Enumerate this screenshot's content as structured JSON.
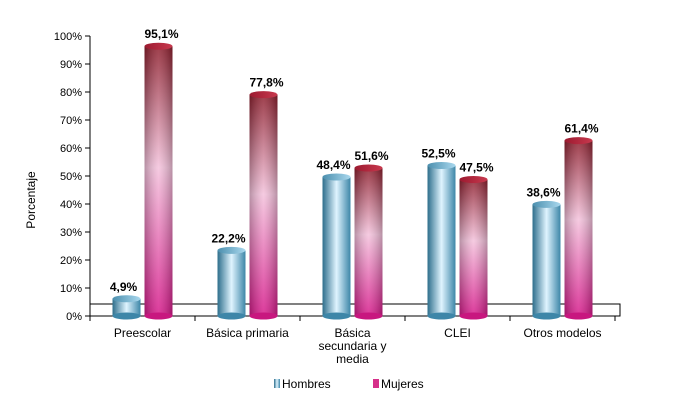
{
  "chart_data": {
    "type": "bar",
    "ylabel": "Porcentaje",
    "ylim": [
      0,
      100
    ],
    "yticks": [
      "0%",
      "10%",
      "20%",
      "30%",
      "40%",
      "50%",
      "60%",
      "70%",
      "80%",
      "90%",
      "100%"
    ],
    "categories": [
      [
        "Preescolar"
      ],
      [
        "Básica primaria"
      ],
      [
        "Básica",
        "secundaria y",
        "media"
      ],
      [
        "CLEI"
      ],
      [
        "Otros modelos"
      ]
    ],
    "series": [
      {
        "name": "Hombres",
        "values": [
          4.9,
          22.2,
          48.4,
          52.5,
          38.6
        ],
        "labels": [
          "4,9%",
          "22,2%",
          "48,4%",
          "52,5%",
          "38,6%"
        ],
        "color": "#5aa9c9"
      },
      {
        "name": "Mujeres",
        "values": [
          95.1,
          77.8,
          51.6,
          47.5,
          61.4
        ],
        "labels": [
          "95,1%",
          "77,8%",
          "51,6%",
          "47,5%",
          "61,4%"
        ],
        "color": "#d6308a"
      }
    ],
    "legend": "bottom",
    "grid": false
  }
}
